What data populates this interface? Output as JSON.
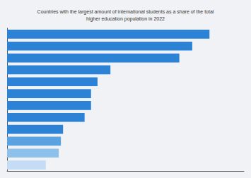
{
  "chart_data": {
    "type": "bar",
    "orientation": "horizontal",
    "title": "Countries with the largest amount of international students as a share of the total\nhigher education population in 2022",
    "categories": [
      null,
      null,
      null,
      null,
      null,
      null,
      null,
      null,
      null,
      null,
      null,
      null
    ],
    "values": [
      47,
      43,
      40,
      24,
      21,
      19.5,
      19.5,
      18,
      13,
      12.5,
      12,
      9
    ],
    "colors": [
      "#2c82d4",
      "#2c82d4",
      "#2c82d4",
      "#2c82d4",
      "#2c82d4",
      "#2c82d4",
      "#2c82d4",
      "#2c82d4",
      "#2c82d4",
      "#5ba3e0",
      "#8ec0ec",
      "#c5dcf5"
    ],
    "xlim": [
      0,
      55
    ],
    "grid": false,
    "tick_labels": false
  }
}
